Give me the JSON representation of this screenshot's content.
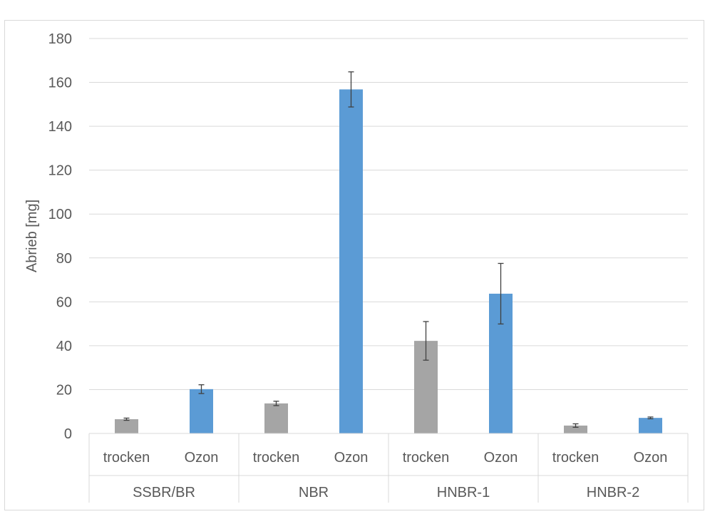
{
  "chart_data": {
    "type": "bar",
    "ylabel": "Abrieb [mg]",
    "xlabel": "",
    "ylim": [
      0,
      180
    ],
    "yticks": [
      0,
      20,
      40,
      60,
      80,
      100,
      120,
      140,
      160,
      180
    ],
    "grid": true,
    "legend": "none",
    "groups": [
      {
        "name": "SSBR/BR",
        "bars": [
          {
            "label": "trocken",
            "value": 6.5,
            "error": 0.5,
            "color": "#a5a5a5"
          },
          {
            "label": "Ozon",
            "value": 20.2,
            "error": 2.0,
            "color": "#5b9bd5"
          }
        ]
      },
      {
        "name": "NBR",
        "bars": [
          {
            "label": "trocken",
            "value": 13.7,
            "error": 1.0,
            "color": "#a5a5a5"
          },
          {
            "label": "Ozon",
            "value": 156.8,
            "error": 8.0,
            "color": "#5b9bd5"
          }
        ]
      },
      {
        "name": "HNBR-1",
        "bars": [
          {
            "label": "trocken",
            "value": 42.2,
            "error": 8.8,
            "color": "#a5a5a5"
          },
          {
            "label": "Ozon",
            "value": 63.7,
            "error": 13.8,
            "color": "#5b9bd5"
          }
        ]
      },
      {
        "name": "HNBR-2",
        "bars": [
          {
            "label": "trocken",
            "value": 3.6,
            "error": 0.8,
            "color": "#a5a5a5"
          },
          {
            "label": "Ozon",
            "value": 7.1,
            "error": 0.4,
            "color": "#5b9bd5"
          }
        ]
      }
    ]
  }
}
